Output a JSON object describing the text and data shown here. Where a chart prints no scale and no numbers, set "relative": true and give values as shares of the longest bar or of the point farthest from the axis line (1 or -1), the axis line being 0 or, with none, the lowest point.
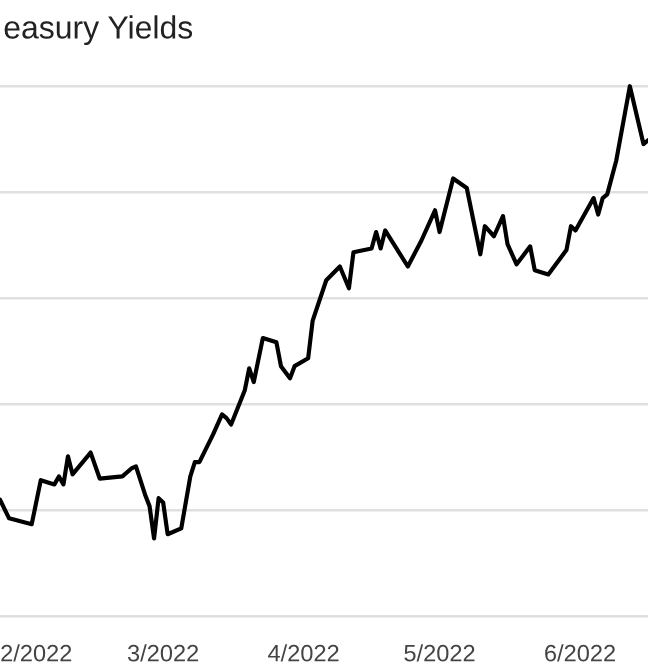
{
  "chart_data": {
    "type": "line",
    "title": "easury Yields",
    "relative": true,
    "grid": "y",
    "tick_labels": "x",
    "legend": false,
    "marker": "none",
    "line_style": "solid",
    "xlim": [
      "2022-01-24",
      "2022-06-16"
    ],
    "xticks": [
      {
        "value": "2022-02-01",
        "label": "2/2022"
      },
      {
        "value": "2022-03-01",
        "label": "3/2022"
      },
      {
        "value": "2022-04-01",
        "label": "4/2022"
      },
      {
        "value": "2022-05-01",
        "label": "5/2022"
      },
      {
        "value": "2022-06-01",
        "label": "6/2022"
      }
    ],
    "series": [
      {
        "color": "#000000",
        "x": [
          "2022-01-24",
          "2022-01-26",
          "2022-01-31",
          "2022-02-02",
          "2022-02-05",
          "2022-02-06",
          "2022-02-07",
          "2022-02-08",
          "2022-02-09",
          "2022-02-13",
          "2022-02-15",
          "2022-02-20",
          "2022-02-22",
          "2022-02-23",
          "2022-02-25",
          "2022-02-26",
          "2022-02-27",
          "2022-02-28",
          "2022-03-01",
          "2022-03-02",
          "2022-03-05",
          "2022-03-07",
          "2022-03-08",
          "2022-03-09",
          "2022-03-12",
          "2022-03-14",
          "2022-03-15",
          "2022-03-16",
          "2022-03-19",
          "2022-03-20",
          "2022-03-21",
          "2022-03-23",
          "2022-03-26",
          "2022-03-27",
          "2022-03-29",
          "2022-03-30",
          "2022-04-02",
          "2022-04-03",
          "2022-04-06",
          "2022-04-09",
          "2022-04-11",
          "2022-04-12",
          "2022-04-16",
          "2022-04-17",
          "2022-04-18",
          "2022-04-19",
          "2022-04-24",
          "2022-04-27",
          "2022-04-30",
          "2022-05-01",
          "2022-05-04",
          "2022-05-07",
          "2022-05-10",
          "2022-05-11",
          "2022-05-13",
          "2022-05-15",
          "2022-05-16",
          "2022-05-18",
          "2022-05-21",
          "2022-05-22",
          "2022-05-25",
          "2022-05-29",
          "2022-05-30",
          "2022-05-31",
          "2022-06-04",
          "2022-06-05",
          "2022-06-06",
          "2022-06-07",
          "2022-06-09",
          "2022-06-12",
          "2022-06-15",
          "2022-06-16"
        ],
        "values": [
          0.22,
          0.185,
          0.174,
          0.257,
          0.249,
          0.264,
          0.249,
          0.302,
          0.268,
          0.309,
          0.26,
          0.264,
          0.279,
          0.283,
          0.23,
          0.208,
          0.147,
          0.223,
          0.215,
          0.155,
          0.166,
          0.264,
          0.291,
          0.291,
          0.343,
          0.381,
          0.374,
          0.362,
          0.426,
          0.468,
          0.442,
          0.525,
          0.517,
          0.472,
          0.449,
          0.472,
          0.487,
          0.558,
          0.634,
          0.66,
          0.619,
          0.687,
          0.694,
          0.725,
          0.694,
          0.728,
          0.66,
          0.709,
          0.766,
          0.725,
          0.826,
          0.808,
          0.683,
          0.736,
          0.717,
          0.755,
          0.702,
          0.664,
          0.698,
          0.653,
          0.645,
          0.691,
          0.736,
          0.728,
          0.789,
          0.758,
          0.789,
          0.796,
          0.86,
          1.0,
          0.891,
          0.898
        ]
      }
    ]
  }
}
